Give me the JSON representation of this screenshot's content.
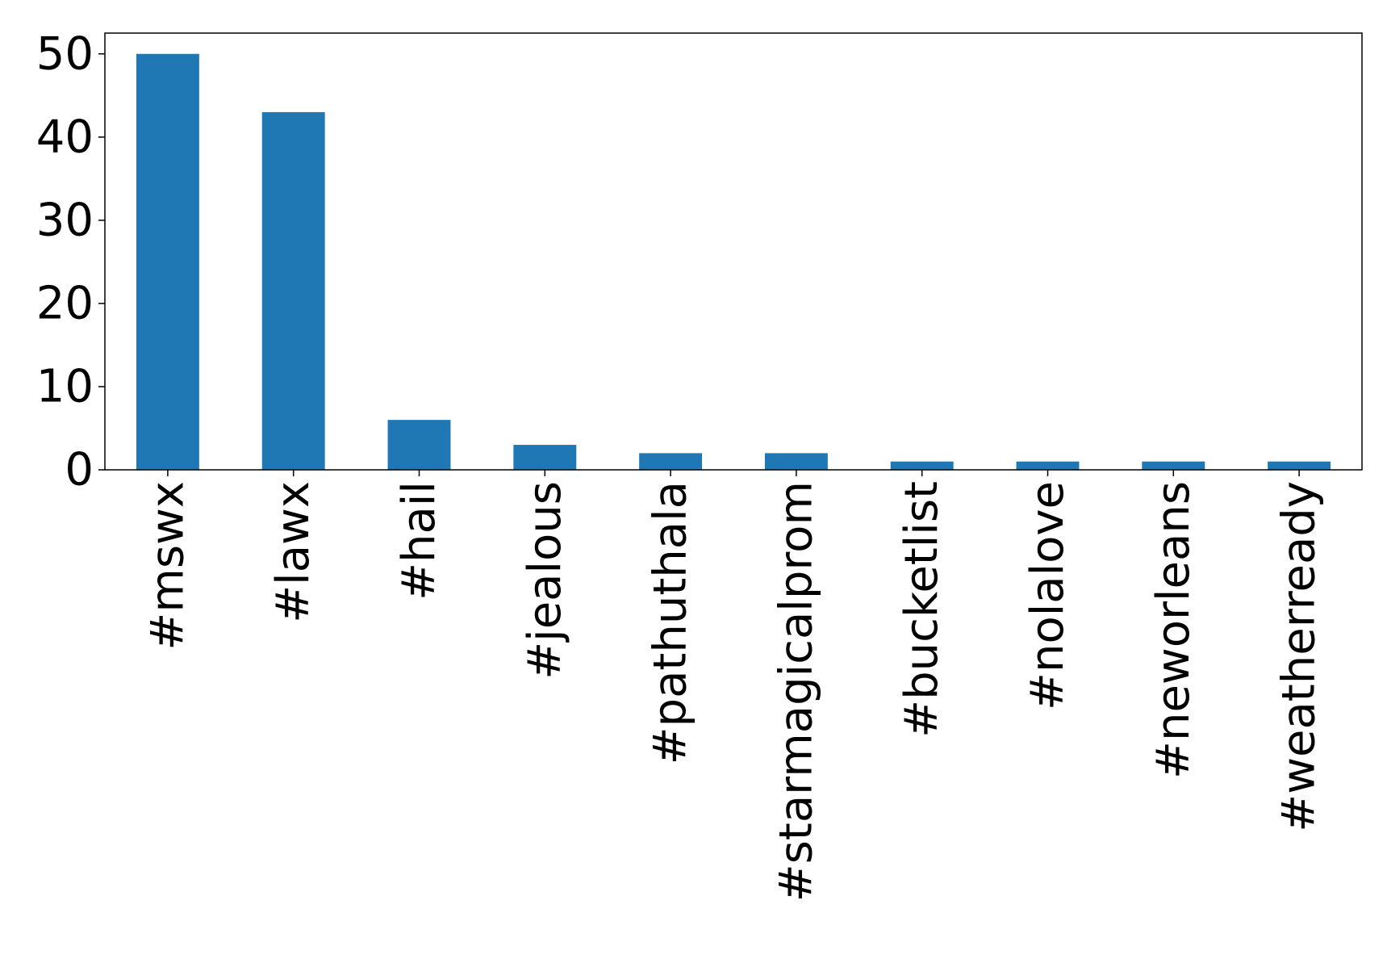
{
  "chart_data": {
    "type": "bar",
    "title": "",
    "xlabel": "",
    "ylabel": "",
    "categories": [
      "#mswx",
      "#lawx",
      "#hail",
      "#jealous",
      "#pathuthala",
      "#starmagicalprom",
      "#bucketlist",
      "#nolalove",
      "#neworleans",
      "#weatherready"
    ],
    "values": [
      50,
      43,
      6,
      3,
      2,
      2,
      1,
      1,
      1,
      1
    ],
    "ylim": [
      0,
      52.5
    ],
    "yticks": [
      0,
      10,
      20,
      30,
      40,
      50
    ],
    "grid": false,
    "legend": "none",
    "bar_color": "#1f77b4"
  }
}
